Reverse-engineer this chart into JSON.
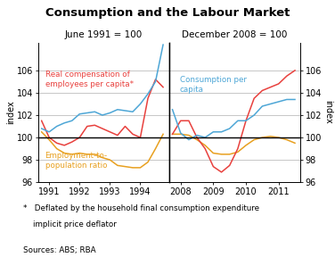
{
  "title": "Consumption and the Labour Market",
  "left_subtitle": "June 1991 = 100",
  "right_subtitle": "December 2008 = 100",
  "ylabel_left": "index",
  "ylabel_right": "index",
  "ylim": [
    96,
    108.5
  ],
  "yticks": [
    96,
    98,
    100,
    102,
    104,
    106
  ],
  "footnote1": "*   Deflated by the household final consumption expenditure",
  "footnote2": "    implicit price deflator",
  "sources": "Sources: ABS; RBA",
  "colors": {
    "red": "#e8413e",
    "blue": "#4da6d6",
    "orange": "#e8a020"
  },
  "left_panel": {
    "xticks": [
      1991,
      1992,
      1993,
      1994
    ],
    "real_comp": {
      "x": [
        1990.75,
        1991.0,
        1991.25,
        1991.5,
        1991.75,
        1992.0,
        1992.25,
        1992.5,
        1992.75,
        1993.0,
        1993.25,
        1993.5,
        1993.75,
        1994.0,
        1994.25,
        1994.5,
        1994.75
      ],
      "y": [
        101.5,
        100.0,
        99.5,
        99.3,
        99.6,
        100.0,
        101.0,
        101.1,
        100.8,
        100.5,
        100.2,
        101.0,
        100.3,
        100.0,
        103.5,
        105.2,
        104.5
      ]
    },
    "consumption": {
      "x": [
        1990.75,
        1991.0,
        1991.25,
        1991.5,
        1991.75,
        1992.0,
        1992.25,
        1992.5,
        1992.75,
        1993.0,
        1993.25,
        1993.5,
        1993.75,
        1994.0,
        1994.25,
        1994.5,
        1994.75
      ],
      "y": [
        100.8,
        100.5,
        101.0,
        101.3,
        101.5,
        102.1,
        102.2,
        102.3,
        102.0,
        102.2,
        102.5,
        102.4,
        102.3,
        103.0,
        103.9,
        105.0,
        108.3
      ]
    },
    "employment": {
      "x": [
        1990.75,
        1991.0,
        1991.25,
        1991.5,
        1991.75,
        1992.0,
        1992.25,
        1992.5,
        1992.75,
        1993.0,
        1993.25,
        1993.5,
        1993.75,
        1994.0,
        1994.25,
        1994.5,
        1994.75
      ],
      "y": [
        100.5,
        99.8,
        99.0,
        98.6,
        98.5,
        98.6,
        98.5,
        98.5,
        98.2,
        98.0,
        97.5,
        97.4,
        97.3,
        97.3,
        97.8,
        99.0,
        100.3
      ]
    }
  },
  "right_panel": {
    "xticks": [
      2008,
      2009,
      2010,
      2011
    ],
    "real_comp": {
      "x": [
        2007.75,
        2008.0,
        2008.25,
        2008.5,
        2008.75,
        2009.0,
        2009.25,
        2009.5,
        2009.75,
        2010.0,
        2010.25,
        2010.5,
        2010.75,
        2011.0,
        2011.25,
        2011.5
      ],
      "y": [
        100.3,
        101.5,
        101.5,
        100.0,
        99.0,
        97.4,
        96.9,
        97.5,
        99.0,
        101.5,
        103.5,
        104.2,
        104.5,
        104.8,
        105.5,
        106.0
      ]
    },
    "consumption": {
      "x": [
        2007.75,
        2008.0,
        2008.25,
        2008.5,
        2008.75,
        2009.0,
        2009.25,
        2009.5,
        2009.75,
        2010.0,
        2010.25,
        2010.5,
        2010.75,
        2011.0,
        2011.25,
        2011.5
      ],
      "y": [
        102.5,
        100.4,
        99.8,
        100.2,
        100.0,
        100.5,
        100.5,
        100.8,
        101.5,
        101.5,
        102.0,
        102.8,
        103.0,
        103.2,
        103.4,
        103.4
      ]
    },
    "employment": {
      "x": [
        2007.75,
        2008.0,
        2008.25,
        2008.5,
        2008.75,
        2009.0,
        2009.25,
        2009.5,
        2009.75,
        2010.0,
        2010.25,
        2010.5,
        2010.75,
        2011.0,
        2011.25,
        2011.5
      ],
      "y": [
        100.3,
        100.3,
        100.2,
        99.8,
        99.3,
        98.6,
        98.5,
        98.5,
        98.7,
        99.3,
        99.8,
        100.0,
        100.1,
        100.0,
        99.8,
        99.5
      ]
    }
  }
}
